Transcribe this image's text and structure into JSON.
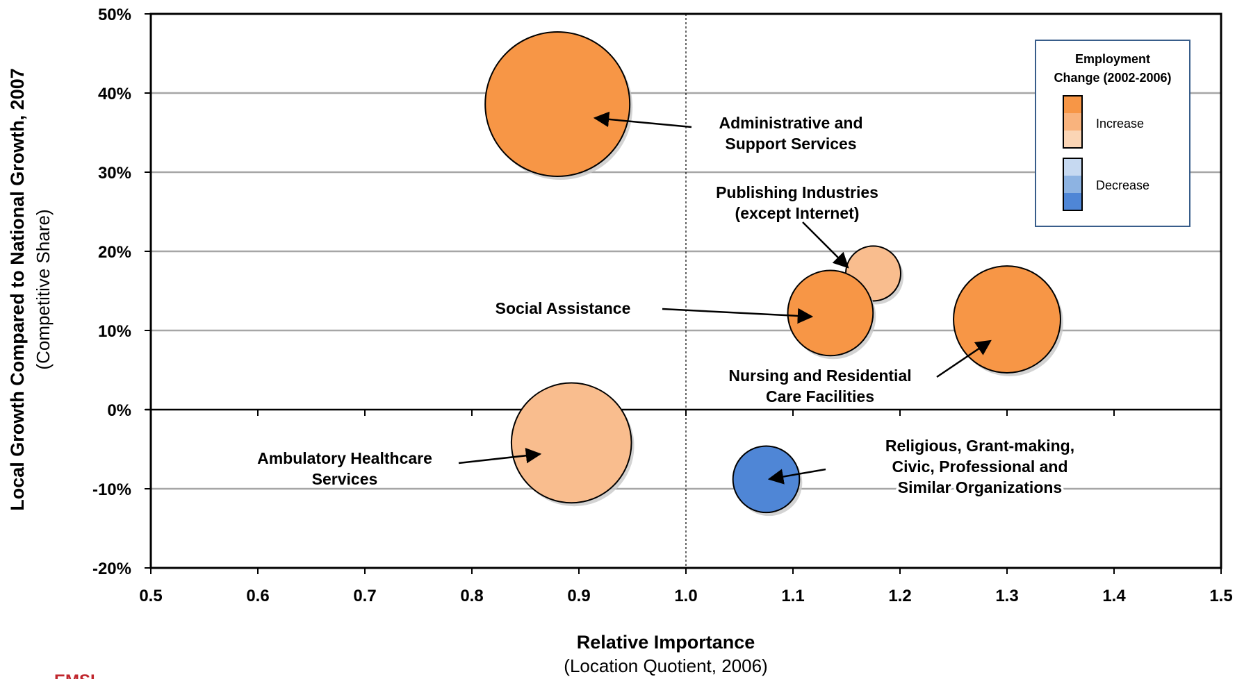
{
  "chart_data": {
    "type": "scatter",
    "subtype": "bubble",
    "xlabel": "Relative Importance",
    "xlabel_sub": "(Location Quotient, 2006)",
    "ylabel": "Local Growth Compared to National Growth, 2007",
    "ylabel_sub": "(Competitive Share)",
    "xlim": [
      0.5,
      1.5
    ],
    "ylim": [
      -20,
      50
    ],
    "x_ticks": [
      "0.5",
      "0.6",
      "0.7",
      "0.8",
      "0.9",
      "1.0",
      "1.1",
      "1.2",
      "1.3",
      "1.4",
      "1.5"
    ],
    "y_ticks": [
      "50%",
      "40%",
      "30%",
      "20%",
      "10%",
      "0%",
      "-10%",
      "-20%"
    ],
    "grid": "horizontal",
    "reference_line_x": 1.0,
    "colors": {
      "increase_strong": "#f79646",
      "increase_medium": "#f9b37d",
      "increase_light": "#fbd5b5",
      "decrease_light": "#c6d9f1",
      "decrease_medium": "#8db3e2",
      "decrease_strong": "#4f86d6"
    },
    "points": [
      {
        "label": "Administrative and Support Services",
        "x": 0.88,
        "y": 38.6,
        "size": 1.0,
        "color": "#f79646"
      },
      {
        "label": "Publishing Industries (except Internet)",
        "x": 1.175,
        "y": 17.2,
        "size": 0.38,
        "color": "#f9bd8e"
      },
      {
        "label": "Social Assistance",
        "x": 1.135,
        "y": 12.2,
        "size": 0.59,
        "color": "#f79646"
      },
      {
        "label": "Nursing and Residential Care Facilities",
        "x": 1.3,
        "y": 11.4,
        "size": 0.74,
        "color": "#f79646"
      },
      {
        "label": "Ambulatory Healthcare Services",
        "x": 0.893,
        "y": -4.2,
        "size": 0.83,
        "color": "#f9bd8e"
      },
      {
        "label": "Religious, Grant-making, Civic, Professional and Similar Organizations",
        "x": 1.075,
        "y": -8.8,
        "size": 0.46,
        "color": "#4f86d6"
      }
    ],
    "annotations": [
      {
        "lines": [
          "Administrative and",
          "Support Services"
        ]
      },
      {
        "lines": [
          "Publishing Industries",
          "(except Internet)"
        ]
      },
      {
        "lines": [
          "Social Assistance"
        ]
      },
      {
        "lines": [
          "Nursing and Residential",
          "Care Facilities"
        ]
      },
      {
        "lines": [
          "Ambulatory Healthcare",
          "Services"
        ]
      },
      {
        "lines": [
          "Religious, Grant-making,",
          "Civic, Professional and",
          "Similar Organizations"
        ]
      }
    ],
    "legend": {
      "title_lines": [
        "Employment",
        "Change (2002-2006)"
      ],
      "increase_label": "Increase",
      "decrease_label": "Decrease",
      "placement": "top-right"
    }
  },
  "logo_text": "EMSI"
}
